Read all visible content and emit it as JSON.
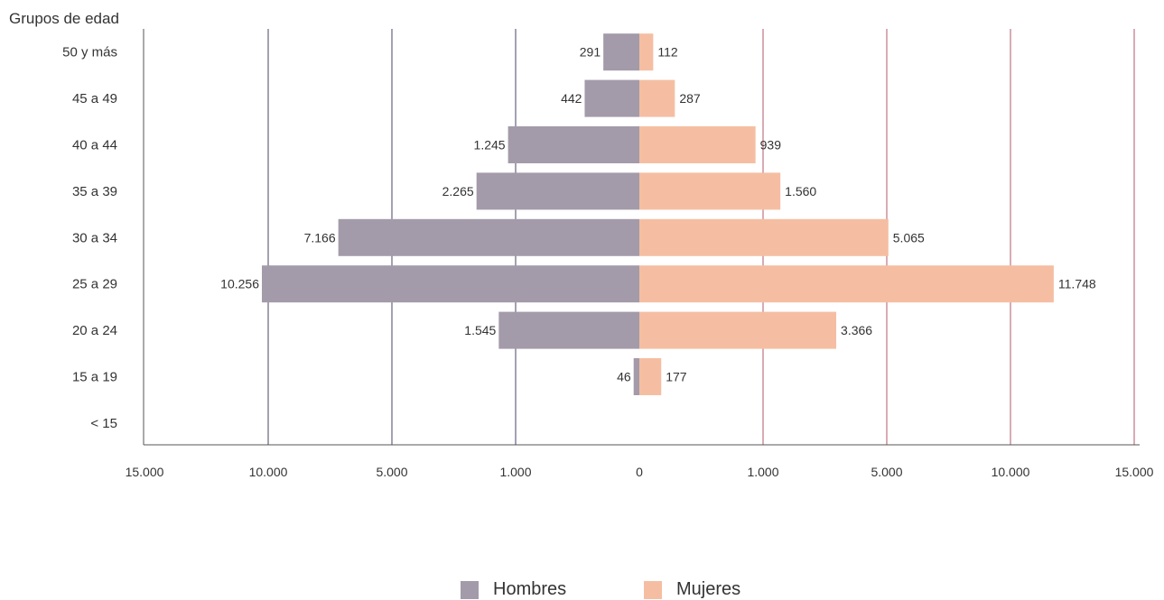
{
  "chart_data": {
    "type": "bar",
    "orientation": "horizontal-diverging",
    "title": "",
    "category_axis_title": "Grupos de edad",
    "categories": [
      "50 y más",
      "45 a 49",
      "40 a 44",
      "35 a 39",
      "30 a 34",
      "25 a 29",
      "20 a 24",
      "15 a 19",
      "< 15"
    ],
    "series": [
      {
        "name": "Hombres",
        "side": "left",
        "color": "#a39ba9",
        "values": [
          291,
          442,
          1245,
          2265,
          7166,
          10256,
          1545,
          46,
          null
        ],
        "labels": [
          "291",
          "442",
          "1.245",
          "2.265",
          "7.166",
          "10.256",
          "1.545",
          "46",
          ""
        ]
      },
      {
        "name": "Mujeres",
        "side": "right",
        "color": "#f5bea2",
        "values": [
          112,
          287,
          939,
          1560,
          5065,
          11748,
          3366,
          177,
          null
        ],
        "labels": [
          "112",
          "287",
          "939",
          "1.560",
          "5.065",
          "11.748",
          "3.366",
          "177",
          ""
        ]
      }
    ],
    "x_axis": {
      "scale": "piecewise-linear (0–1.000, 1.000–5.000, 5.000–10.000, 10.000–15.000 per interval)",
      "ticks": [
        0,
        1000,
        5000,
        10000,
        15000
      ],
      "tick_labels_left": [
        "15.000",
        "10.000",
        "5.000",
        "1.000"
      ],
      "tick_labels_right": [
        "0",
        "1.000",
        "5.000",
        "10.000",
        "15.000"
      ],
      "range": [
        -15000,
        15000
      ]
    },
    "grid": true,
    "gridline_colors": {
      "left": "#4a4460",
      "right": "#b05a6a"
    },
    "legend": {
      "placement": "bottom-center",
      "entries": [
        "Hombres",
        "Mujeres"
      ]
    }
  }
}
